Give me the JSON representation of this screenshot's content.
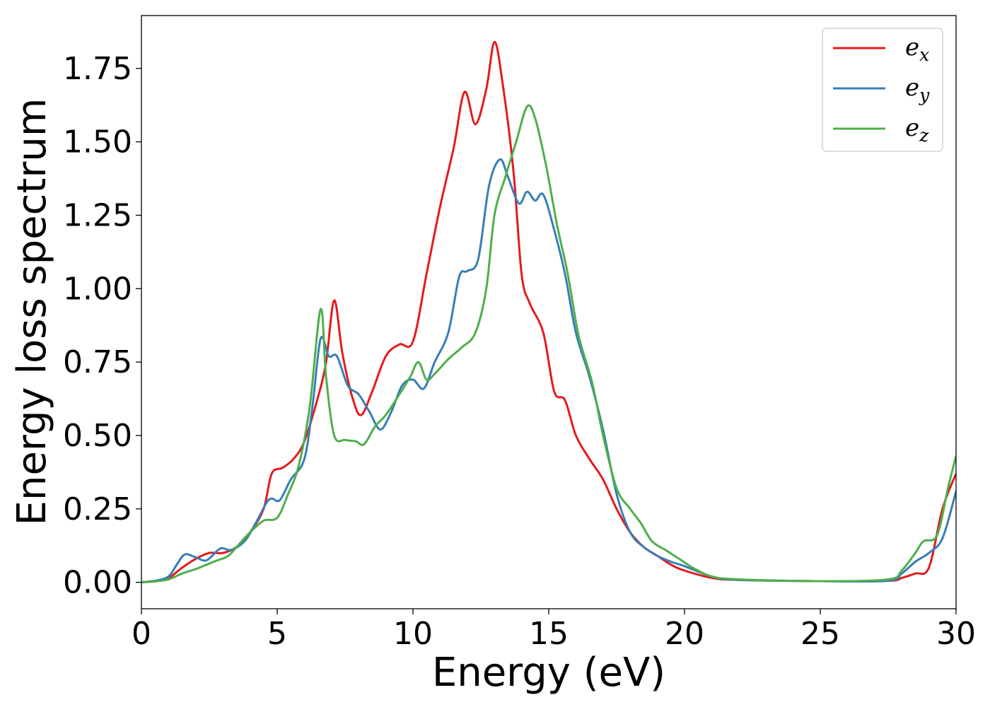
{
  "chart_data": {
    "type": "line",
    "title": "",
    "xlabel": "Energy (eV)",
    "ylabel": "Energy loss spectrum",
    "xlim": [
      0,
      30
    ],
    "ylim": [
      -0.09,
      1.93
    ],
    "xticks": [
      0,
      5,
      10,
      15,
      20,
      25,
      30
    ],
    "yticks": [
      "0.00",
      "0.25",
      "0.50",
      "0.75",
      "1.00",
      "1.25",
      "1.50",
      "1.75"
    ],
    "grid": false,
    "legend_position": "top-right",
    "series": [
      {
        "name": "e",
        "sub": "x",
        "color": "#e41a1c",
        "points": [
          [
            0,
            0
          ],
          [
            0.5,
            0.005
          ],
          [
            1,
            0.015
          ],
          [
            1.5,
            0.05
          ],
          [
            2,
            0.08
          ],
          [
            2.5,
            0.1
          ],
          [
            3,
            0.1
          ],
          [
            3.5,
            0.12
          ],
          [
            4,
            0.17
          ],
          [
            4.5,
            0.25
          ],
          [
            4.8,
            0.37
          ],
          [
            5.2,
            0.39
          ],
          [
            5.6,
            0.42
          ],
          [
            6,
            0.48
          ],
          [
            6.5,
            0.63
          ],
          [
            6.8,
            0.75
          ],
          [
            7.1,
            0.96
          ],
          [
            7.4,
            0.78
          ],
          [
            7.8,
            0.62
          ],
          [
            8.1,
            0.57
          ],
          [
            8.5,
            0.65
          ],
          [
            9,
            0.77
          ],
          [
            9.5,
            0.81
          ],
          [
            10,
            0.82
          ],
          [
            10.5,
            1.05
          ],
          [
            11,
            1.28
          ],
          [
            11.5,
            1.48
          ],
          [
            11.9,
            1.67
          ],
          [
            12.3,
            1.56
          ],
          [
            12.7,
            1.68
          ],
          [
            13,
            1.84
          ],
          [
            13.3,
            1.7
          ],
          [
            13.7,
            1.4
          ],
          [
            14,
            1.05
          ],
          [
            14.3,
            0.95
          ],
          [
            14.8,
            0.85
          ],
          [
            15.2,
            0.65
          ],
          [
            15.6,
            0.62
          ],
          [
            16,
            0.5
          ],
          [
            16.5,
            0.42
          ],
          [
            17,
            0.35
          ],
          [
            17.5,
            0.25
          ],
          [
            18,
            0.17
          ],
          [
            18.5,
            0.12
          ],
          [
            19,
            0.09
          ],
          [
            19.5,
            0.06
          ],
          [
            20,
            0.04
          ],
          [
            21,
            0.015
          ],
          [
            22,
            0.008
          ],
          [
            25,
            0.004
          ],
          [
            27.5,
            0.005
          ],
          [
            28,
            0.015
          ],
          [
            28.5,
            0.03
          ],
          [
            29,
            0.05
          ],
          [
            29.5,
            0.25
          ],
          [
            30,
            0.37
          ]
        ]
      },
      {
        "name": "e",
        "sub": "y",
        "color": "#377eb8",
        "points": [
          [
            0,
            0
          ],
          [
            0.5,
            0.005
          ],
          [
            1,
            0.02
          ],
          [
            1.3,
            0.06
          ],
          [
            1.6,
            0.095
          ],
          [
            2,
            0.085
          ],
          [
            2.4,
            0.075
          ],
          [
            2.9,
            0.115
          ],
          [
            3.3,
            0.11
          ],
          [
            3.8,
            0.14
          ],
          [
            4.2,
            0.2
          ],
          [
            4.6,
            0.27
          ],
          [
            4.8,
            0.285
          ],
          [
            5.1,
            0.28
          ],
          [
            5.5,
            0.35
          ],
          [
            6,
            0.42
          ],
          [
            6.3,
            0.6
          ],
          [
            6.6,
            0.83
          ],
          [
            6.9,
            0.77
          ],
          [
            7.2,
            0.77
          ],
          [
            7.6,
            0.67
          ],
          [
            8,
            0.64
          ],
          [
            8.4,
            0.58
          ],
          [
            8.8,
            0.52
          ],
          [
            9.2,
            0.58
          ],
          [
            9.6,
            0.67
          ],
          [
            10,
            0.69
          ],
          [
            10.4,
            0.66
          ],
          [
            10.8,
            0.75
          ],
          [
            11.3,
            0.85
          ],
          [
            11.7,
            1.04
          ],
          [
            12,
            1.06
          ],
          [
            12.4,
            1.1
          ],
          [
            12.8,
            1.35
          ],
          [
            13.2,
            1.44
          ],
          [
            13.5,
            1.38
          ],
          [
            13.9,
            1.29
          ],
          [
            14.2,
            1.33
          ],
          [
            14.5,
            1.3
          ],
          [
            14.8,
            1.32
          ],
          [
            15.2,
            1.2
          ],
          [
            15.6,
            1.05
          ],
          [
            16,
            0.85
          ],
          [
            16.5,
            0.7
          ],
          [
            17,
            0.52
          ],
          [
            17.5,
            0.3
          ],
          [
            18,
            0.17
          ],
          [
            18.5,
            0.12
          ],
          [
            19,
            0.09
          ],
          [
            19.5,
            0.07
          ],
          [
            20,
            0.055
          ],
          [
            21,
            0.02
          ],
          [
            22,
            0.008
          ],
          [
            25,
            0.004
          ],
          [
            27.5,
            0.005
          ],
          [
            28,
            0.03
          ],
          [
            28.5,
            0.07
          ],
          [
            29,
            0.1
          ],
          [
            29.5,
            0.15
          ],
          [
            30,
            0.31
          ]
        ]
      },
      {
        "name": "e",
        "sub": "z",
        "color": "#4daf4a",
        "points": [
          [
            0,
            0
          ],
          [
            0.5,
            0.003
          ],
          [
            1,
            0.01
          ],
          [
            1.5,
            0.03
          ],
          [
            2,
            0.045
          ],
          [
            2.4,
            0.06
          ],
          [
            2.8,
            0.075
          ],
          [
            3.2,
            0.09
          ],
          [
            3.6,
            0.13
          ],
          [
            4,
            0.17
          ],
          [
            4.5,
            0.21
          ],
          [
            5,
            0.22
          ],
          [
            5.4,
            0.3
          ],
          [
            5.8,
            0.4
          ],
          [
            6.2,
            0.6
          ],
          [
            6.6,
            0.93
          ],
          [
            6.8,
            0.7
          ],
          [
            7.1,
            0.5
          ],
          [
            7.5,
            0.485
          ],
          [
            7.9,
            0.48
          ],
          [
            8.2,
            0.47
          ],
          [
            8.6,
            0.53
          ],
          [
            9,
            0.57
          ],
          [
            9.5,
            0.64
          ],
          [
            9.9,
            0.7
          ],
          [
            10.2,
            0.75
          ],
          [
            10.5,
            0.69
          ],
          [
            10.8,
            0.71
          ],
          [
            11.3,
            0.76
          ],
          [
            11.8,
            0.8
          ],
          [
            12.3,
            0.85
          ],
          [
            12.7,
            1.0
          ],
          [
            13,
            1.25
          ],
          [
            13.4,
            1.38
          ],
          [
            13.8,
            1.5
          ],
          [
            14.2,
            1.62
          ],
          [
            14.5,
            1.58
          ],
          [
            14.9,
            1.42
          ],
          [
            15.3,
            1.22
          ],
          [
            15.7,
            1.05
          ],
          [
            16.1,
            0.84
          ],
          [
            16.6,
            0.68
          ],
          [
            17,
            0.5
          ],
          [
            17.5,
            0.32
          ],
          [
            18,
            0.25
          ],
          [
            18.4,
            0.2
          ],
          [
            18.8,
            0.14
          ],
          [
            19.3,
            0.11
          ],
          [
            19.8,
            0.08
          ],
          [
            20.3,
            0.05
          ],
          [
            21,
            0.02
          ],
          [
            22,
            0.01
          ],
          [
            25,
            0.004
          ],
          [
            27.5,
            0.01
          ],
          [
            28,
            0.04
          ],
          [
            28.5,
            0.1
          ],
          [
            28.8,
            0.14
          ],
          [
            29.3,
            0.16
          ],
          [
            29.7,
            0.32
          ],
          [
            30,
            0.43
          ]
        ]
      }
    ]
  }
}
